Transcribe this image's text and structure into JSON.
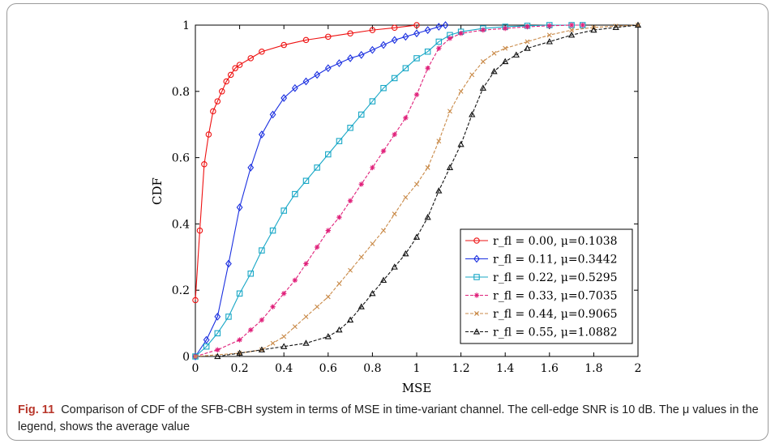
{
  "figure": {
    "label": "Fig. 11",
    "caption": "Comparison of CDF of the SFB-CBH system in terms of MSE in time-variant channel. The cell-edge SNR is 10 dB. The μ values in the legend, shows the average value"
  },
  "chart_data": {
    "type": "line",
    "title": "",
    "xlabel": "MSE",
    "ylabel": "CDF",
    "xlim": [
      0,
      2
    ],
    "ylim": [
      0,
      1
    ],
    "xticks": [
      "0",
      "0.2",
      "0.4",
      "0.6",
      "0.8",
      "1",
      "1.2",
      "1.4",
      "1.6",
      "1.8",
      "2"
    ],
    "yticks": [
      "0",
      "0.2",
      "0.4",
      "0.6",
      "0.8",
      "1"
    ],
    "legend_position": "lower-right",
    "grid": false,
    "series": [
      {
        "name": "r_fl = 0.00, μ=0.1038",
        "color": "#ee1111",
        "marker": "circle",
        "dash": "solid",
        "x": [
          0,
          0.02,
          0.04,
          0.06,
          0.08,
          0.1,
          0.12,
          0.14,
          0.16,
          0.18,
          0.2,
          0.25,
          0.3,
          0.4,
          0.5,
          0.6,
          0.7,
          0.8,
          0.9,
          1.0
        ],
        "y": [
          0.17,
          0.38,
          0.58,
          0.67,
          0.74,
          0.77,
          0.8,
          0.83,
          0.85,
          0.87,
          0.88,
          0.9,
          0.92,
          0.94,
          0.955,
          0.965,
          0.975,
          0.985,
          0.992,
          1.0
        ]
      },
      {
        "name": "r_fl = 0.11, μ=0.3442",
        "color": "#1a2fe0",
        "marker": "diamond",
        "dash": "solid",
        "x": [
          0,
          0.05,
          0.1,
          0.15,
          0.2,
          0.25,
          0.3,
          0.35,
          0.4,
          0.45,
          0.5,
          0.55,
          0.6,
          0.65,
          0.7,
          0.75,
          0.8,
          0.85,
          0.9,
          0.95,
          1.0,
          1.05,
          1.1,
          1.13
        ],
        "y": [
          0.0,
          0.05,
          0.12,
          0.28,
          0.45,
          0.57,
          0.67,
          0.73,
          0.78,
          0.81,
          0.83,
          0.85,
          0.87,
          0.885,
          0.9,
          0.91,
          0.925,
          0.94,
          0.955,
          0.965,
          0.975,
          0.985,
          0.995,
          1.0
        ]
      },
      {
        "name": "r_fl = 0.22, μ=0.5295",
        "color": "#17a7c6",
        "marker": "square",
        "dash": "solid",
        "x": [
          0,
          0.05,
          0.1,
          0.15,
          0.2,
          0.25,
          0.3,
          0.35,
          0.4,
          0.45,
          0.5,
          0.55,
          0.6,
          0.65,
          0.7,
          0.75,
          0.8,
          0.85,
          0.9,
          0.95,
          1.0,
          1.05,
          1.1,
          1.15,
          1.2,
          1.3,
          1.4,
          1.5,
          1.6,
          1.7,
          1.75
        ],
        "y": [
          0.0,
          0.03,
          0.07,
          0.12,
          0.19,
          0.25,
          0.32,
          0.38,
          0.44,
          0.49,
          0.53,
          0.57,
          0.61,
          0.65,
          0.69,
          0.73,
          0.77,
          0.81,
          0.84,
          0.87,
          0.9,
          0.92,
          0.95,
          0.97,
          0.98,
          0.99,
          0.995,
          0.998,
          1.0,
          1.0,
          1.0
        ]
      },
      {
        "name": "r_fl = 0.33, μ=0.7035",
        "color": "#e0207a",
        "marker": "star",
        "dash": "dashed",
        "x": [
          0,
          0.1,
          0.2,
          0.25,
          0.3,
          0.35,
          0.4,
          0.45,
          0.5,
          0.55,
          0.6,
          0.65,
          0.7,
          0.75,
          0.8,
          0.85,
          0.9,
          0.95,
          1.0,
          1.05,
          1.1,
          1.15,
          1.2,
          1.3,
          1.4,
          1.5,
          1.6,
          1.7,
          1.75
        ],
        "y": [
          0.0,
          0.02,
          0.05,
          0.08,
          0.11,
          0.15,
          0.19,
          0.23,
          0.28,
          0.33,
          0.38,
          0.42,
          0.47,
          0.52,
          0.57,
          0.62,
          0.67,
          0.72,
          0.79,
          0.87,
          0.93,
          0.96,
          0.975,
          0.985,
          0.99,
          0.995,
          0.998,
          1.0,
          1.0
        ]
      },
      {
        "name": "r_fl = 0.44, μ=0.9065",
        "color": "#c98a48",
        "marker": "cross",
        "dash": "dashed",
        "x": [
          0,
          0.2,
          0.3,
          0.35,
          0.4,
          0.45,
          0.5,
          0.55,
          0.6,
          0.65,
          0.7,
          0.75,
          0.8,
          0.85,
          0.9,
          0.95,
          1.0,
          1.05,
          1.1,
          1.15,
          1.2,
          1.25,
          1.3,
          1.35,
          1.4,
          1.5,
          1.6,
          1.7,
          1.8,
          1.9,
          2.0
        ],
        "y": [
          0.0,
          0.01,
          0.02,
          0.04,
          0.06,
          0.09,
          0.12,
          0.15,
          0.18,
          0.22,
          0.26,
          0.3,
          0.34,
          0.38,
          0.43,
          0.48,
          0.52,
          0.57,
          0.65,
          0.74,
          0.8,
          0.85,
          0.89,
          0.915,
          0.93,
          0.95,
          0.97,
          0.985,
          0.993,
          0.997,
          1.0
        ]
      },
      {
        "name": "r_fl = 0.55, μ=1.0882",
        "color": "#111111",
        "marker": "triangle",
        "dash": "dashed",
        "x": [
          0.1,
          0.2,
          0.3,
          0.4,
          0.5,
          0.6,
          0.65,
          0.7,
          0.75,
          0.8,
          0.85,
          0.9,
          0.95,
          1.0,
          1.05,
          1.1,
          1.15,
          1.2,
          1.25,
          1.3,
          1.35,
          1.4,
          1.45,
          1.5,
          1.6,
          1.7,
          1.8,
          1.9,
          2.0
        ],
        "y": [
          0.0,
          0.01,
          0.02,
          0.03,
          0.04,
          0.06,
          0.08,
          0.11,
          0.15,
          0.19,
          0.23,
          0.27,
          0.31,
          0.36,
          0.42,
          0.5,
          0.57,
          0.64,
          0.73,
          0.81,
          0.86,
          0.89,
          0.91,
          0.93,
          0.95,
          0.97,
          0.985,
          0.993,
          1.0
        ]
      }
    ]
  }
}
